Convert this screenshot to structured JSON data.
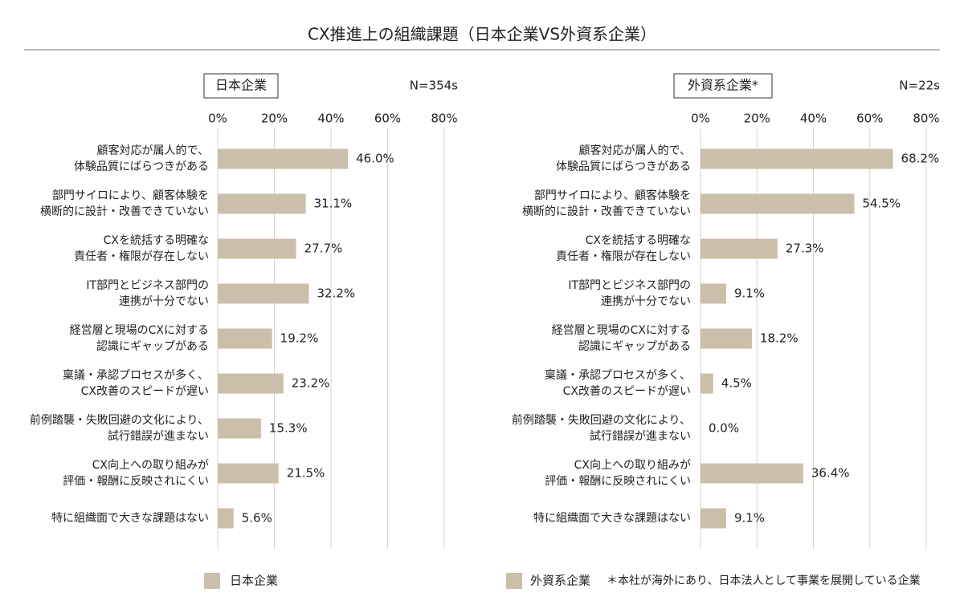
{
  "title": "CX推進上の組織課題（日本企業VS外資系企業）",
  "colors": {
    "bar": "#cbbfab",
    "grid": "#d9d2c7",
    "axis_line": "#9e9488",
    "text": "#222222"
  },
  "legend": {
    "japan": "日本企業",
    "foreign": "外資系企業",
    "note": "＊本社が海外にあり、日本法人として事業を展開している企業"
  },
  "chart_data": [
    {
      "type": "bar",
      "orientation": "horizontal",
      "panel_label": "日本企業",
      "n_label": "N=354s",
      "xlim": [
        0,
        80
      ],
      "xticks": [
        "0%",
        "20%",
        "40%",
        "60%",
        "80%"
      ],
      "categories": [
        [
          "顧客対応が属人的で、",
          "体験品質にばらつきがある"
        ],
        [
          "部門サイロにより、顧客体験を",
          "横断的に設計・改善できていない"
        ],
        [
          "CXを統括する明確な",
          "責任者・権限が存在しない"
        ],
        [
          "IT部門とビジネス部門の",
          "連携が十分でない"
        ],
        [
          "経営層と現場のCXに対する",
          "認識にギャップがある"
        ],
        [
          "稟議・承認プロセスが多く、",
          "CX改善のスピードが遅い"
        ],
        [
          "前例踏襲・失敗回避の文化により、",
          "試行錯誤が進まない"
        ],
        [
          "CX向上への取り組みが",
          "評価・報酬に反映されにくい"
        ],
        [
          "特に組織面で大きな課題はない"
        ]
      ],
      "values": [
        46.0,
        31.1,
        27.7,
        32.2,
        19.2,
        23.2,
        15.3,
        21.5,
        5.6
      ],
      "data_labels": [
        "46.0%",
        "31.1%",
        "27.7%",
        "32.2%",
        "19.2%",
        "23.2%",
        "15.3%",
        "21.5%",
        "5.6%"
      ],
      "grid": true
    },
    {
      "type": "bar",
      "orientation": "horizontal",
      "panel_label": "外資系企業*",
      "n_label": "N=22s",
      "xlim": [
        0,
        80
      ],
      "xticks": [
        "0%",
        "20%",
        "40%",
        "60%",
        "80%"
      ],
      "categories": [
        [
          "顧客対応が属人的で、",
          "体験品質にばらつきがある"
        ],
        [
          "部門サイロにより、顧客体験を",
          "横断的に設計・改善できていない"
        ],
        [
          "CXを統括する明確な",
          "責任者・権限が存在しない"
        ],
        [
          "IT部門とビジネス部門の",
          "連携が十分でない"
        ],
        [
          "経営層と現場のCXに対する",
          "認識にギャップがある"
        ],
        [
          "稟議・承認プロセスが多く、",
          "CX改善のスピードが遅い"
        ],
        [
          "前例踏襲・失敗回避の文化により、",
          "試行錯誤が進まない"
        ],
        [
          "CX向上への取り組みが",
          "評価・報酬に反映されにくい"
        ],
        [
          "特に組織面で大きな課題はない"
        ]
      ],
      "values": [
        68.2,
        54.5,
        27.3,
        9.1,
        18.2,
        4.5,
        0.0,
        36.4,
        9.1
      ],
      "data_labels": [
        "68.2%",
        "54.5%",
        "27.3%",
        "9.1%",
        "18.2%",
        "4.5%",
        "0.0%",
        "36.4%",
        "9.1%"
      ],
      "grid": true
    }
  ]
}
